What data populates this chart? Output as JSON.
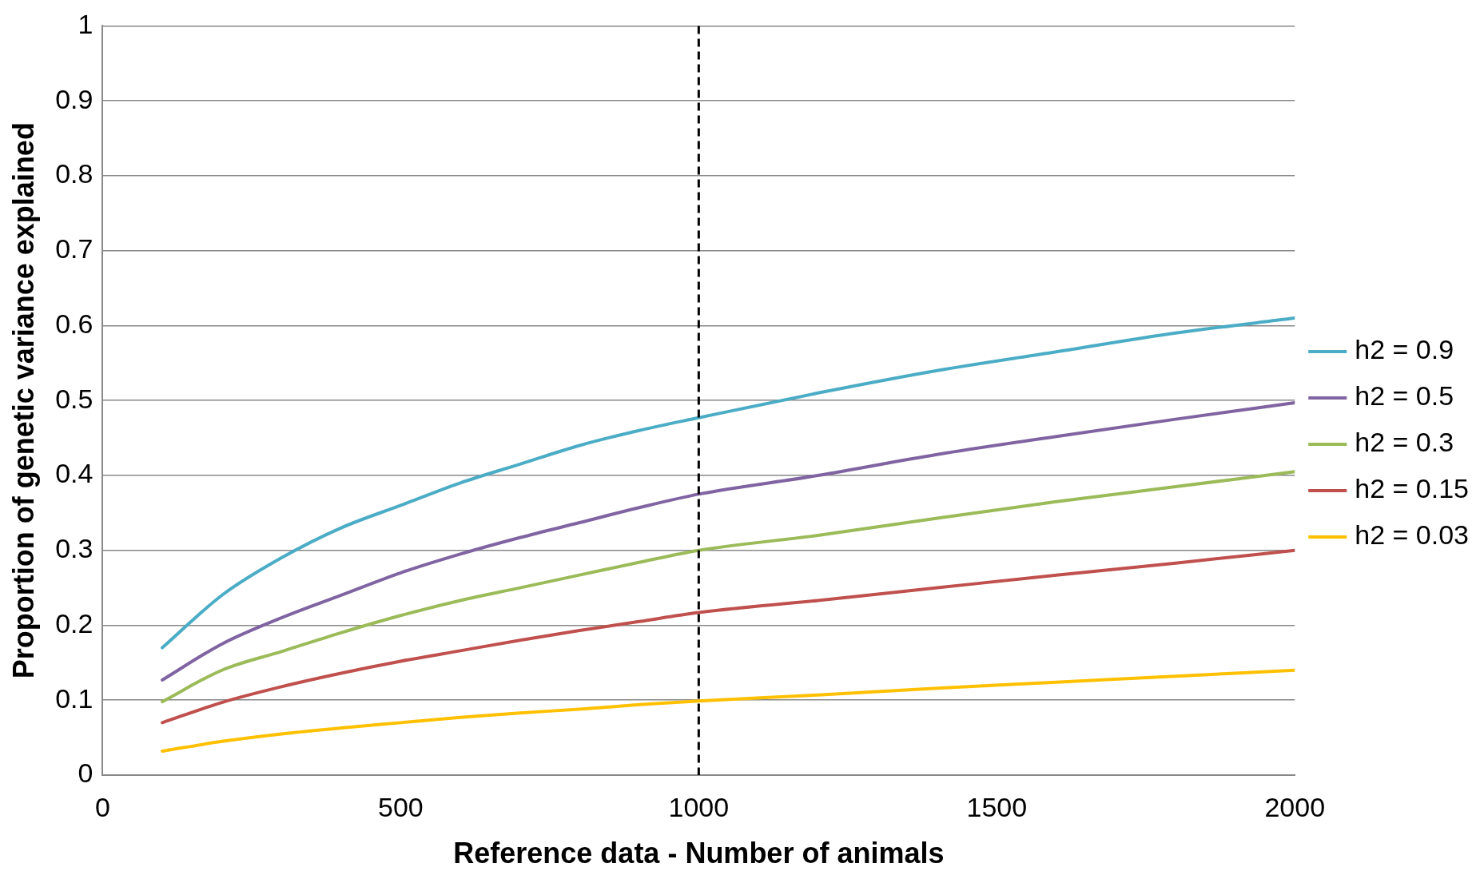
{
  "chart_data": {
    "type": "line",
    "xlabel": "Reference data - Number of animals",
    "ylabel": "Proportion of genetic variance explained",
    "x": [
      100,
      200,
      300,
      400,
      500,
      600,
      700,
      800,
      900,
      1000,
      1200,
      1400,
      1600,
      1800,
      2000
    ],
    "series": [
      {
        "name": "h2 = 0.9",
        "color": "#4bacc6",
        "values": [
          0.17,
          0.24,
          0.29,
          0.33,
          0.36,
          0.39,
          0.415,
          0.44,
          0.46,
          0.477,
          0.51,
          0.54,
          0.565,
          0.59,
          0.61
        ]
      },
      {
        "name": "h2 = 0.5",
        "color": "#8064a2",
        "values": [
          0.127,
          0.175,
          0.21,
          0.24,
          0.27,
          0.295,
          0.317,
          0.337,
          0.357,
          0.375,
          0.4,
          0.428,
          0.452,
          0.475,
          0.497
        ]
      },
      {
        "name": "h2 = 0.3",
        "color": "#9bbb59",
        "values": [
          0.098,
          0.14,
          0.165,
          0.19,
          0.213,
          0.233,
          0.25,
          0.267,
          0.284,
          0.3,
          0.32,
          0.343,
          0.365,
          0.385,
          0.405
        ]
      },
      {
        "name": "h2 = 0.15",
        "color": "#c0504d",
        "values": [
          0.07,
          0.097,
          0.118,
          0.136,
          0.152,
          0.166,
          0.18,
          0.193,
          0.205,
          0.217,
          0.233,
          0.25,
          0.267,
          0.283,
          0.3
        ]
      },
      {
        "name": "h2 = 0.03",
        "color": "#ffc000",
        "values": [
          0.032,
          0.045,
          0.055,
          0.063,
          0.07,
          0.077,
          0.083,
          0.088,
          0.094,
          0.099,
          0.107,
          0.116,
          0.124,
          0.132,
          0.14
        ]
      }
    ],
    "xlim": [
      0,
      2000
    ],
    "xticks": [
      0,
      500,
      1000,
      1500,
      2000
    ],
    "ylim": [
      0,
      1
    ],
    "yticks": [
      0,
      0.1,
      0.2,
      0.3,
      0.4,
      0.5,
      0.6,
      0.7,
      0.8,
      0.9,
      1
    ],
    "ref_lines": [
      {
        "axis": "x",
        "value": 1000,
        "color": "#000000",
        "line_style": "dashed"
      }
    ],
    "grid": "y",
    "legend": "right",
    "marker": "none",
    "line_style": "solid"
  }
}
